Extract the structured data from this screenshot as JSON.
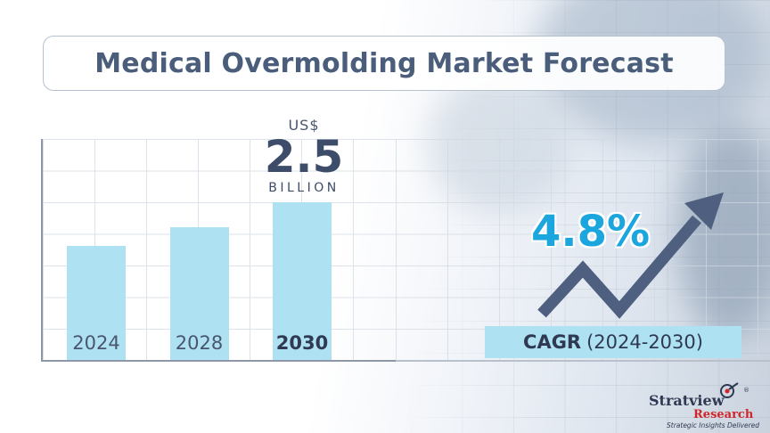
{
  "title": "Medical Overmolding Market Forecast",
  "chart_data": {
    "type": "bar",
    "title": "Medical Overmolding Market Forecast",
    "categories": [
      "2024",
      "2028",
      "2030"
    ],
    "values": [
      1.8,
      2.1,
      2.5
    ],
    "highlight_category": "2030",
    "ylim": [
      0,
      3.5
    ],
    "grid": true,
    "bar_color": "#aee1f2",
    "callout": {
      "unit": "US$",
      "value": "2.5",
      "scale": "BILLION"
    },
    "cagr": {
      "value": "4.8%",
      "label": "CAGR",
      "period": "(2024-2030)"
    }
  },
  "logo": {
    "name": "Stratview",
    "sub": "Research",
    "tagline": "Strategic Insights Delivered",
    "registered": "®"
  },
  "colors": {
    "title": "#4a5d7a",
    "bar": "#aee1f2",
    "cagr_value": "#1ca6de",
    "arrow": "#4e5f80",
    "brand_red": "#d0262a"
  }
}
